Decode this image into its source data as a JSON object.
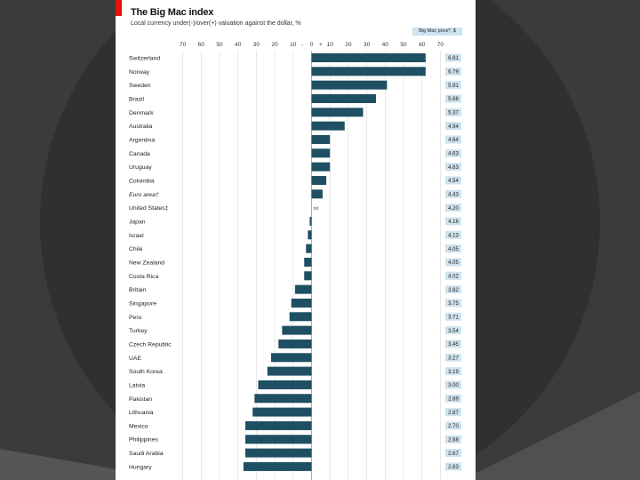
{
  "colors": {
    "background": "#3b3b3b",
    "panel": "#ffffff",
    "accent_red": "#e3120b",
    "bar": "#1e4f63",
    "price_box": "#cde3ef"
  },
  "header": {
    "title": "The Big Mac index",
    "subtitle": "Local currency under(-)/over(+) valuation against the dollar, %"
  },
  "chart_data": {
    "type": "bar",
    "orientation": "horizontal",
    "title": "The Big Mac index",
    "xlabel": "Local currency under(-)/over(+) valuation against the dollar, %",
    "xlim": [
      -70,
      70
    ],
    "xticks": [
      "70",
      "60",
      "50",
      "40",
      "30",
      "20",
      "10",
      "-",
      "0",
      "+",
      "10",
      "20",
      "30",
      "40",
      "50",
      "60",
      "70"
    ],
    "price_header": "Big Mac price*, $",
    "zero_label": "nil",
    "categories": [
      "Switzerland",
      "Norway",
      "Sweden",
      "Brazil",
      "Denmark",
      "Australia",
      "Argentina",
      "Canada",
      "Uruguay",
      "Colombia",
      "Euro area†",
      "United States‡",
      "Japan",
      "Israel",
      "Chile",
      "New Zealand",
      "Costa Rica",
      "Britain",
      "Singapore",
      "Peru",
      "Turkey",
      "Czech Republic",
      "UAE",
      "South Korea",
      "Latvia",
      "Pakistan",
      "Lithuania",
      "Mexico",
      "Philippines",
      "Saudi Arabia",
      "Hungary"
    ],
    "values": [
      62,
      62,
      41,
      35,
      28,
      18,
      10,
      10,
      10,
      8,
      6,
      0,
      -1,
      -2,
      -3,
      -4,
      -4,
      -9,
      -11,
      -12,
      -16,
      -18,
      -22,
      -24,
      -29,
      -31,
      -32,
      -36,
      -36,
      -36,
      -37
    ],
    "prices": [
      "6.81",
      "6.79",
      "5.91",
      "5.68",
      "5.37",
      "4.94",
      "4.64",
      "4.63",
      "4.63",
      "4.54",
      "4.43",
      "4.20",
      "4.16",
      "4.13",
      "4.05",
      "4.05",
      "4.02",
      "3.82",
      "3.75",
      "3.71",
      "3.54",
      "3.45",
      "3.27",
      "3.19",
      "3.00",
      "2.89",
      "2.87",
      "2.70",
      "2.68",
      "2.67",
      "2.63"
    ]
  }
}
